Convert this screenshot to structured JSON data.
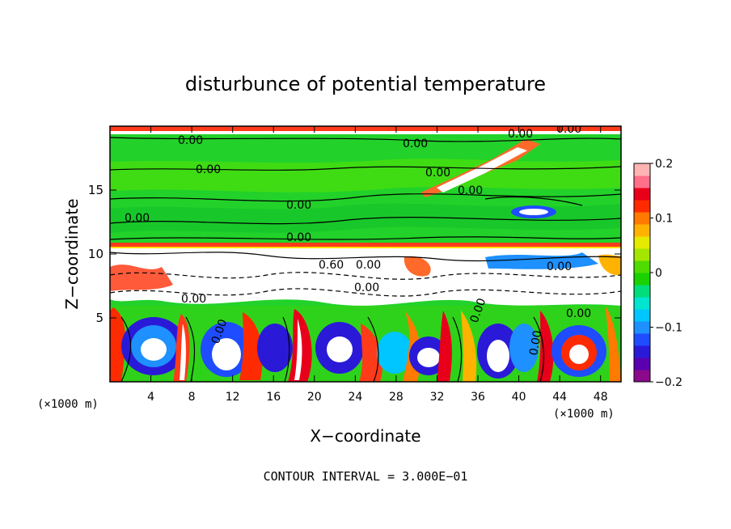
{
  "chart_data": {
    "type": "heatmap",
    "title": "disturbunce of potential temperature",
    "xlabel": "X−coordinate",
    "ylabel": "Z−coordinate",
    "x_unit_left": "(×1000 m)",
    "x_unit_right": "(×1000 m)",
    "xlim": [
      0,
      50
    ],
    "ylim": [
      0,
      20
    ],
    "x_ticks": [
      4,
      8,
      12,
      16,
      20,
      24,
      28,
      32,
      36,
      40,
      44,
      48
    ],
    "y_ticks": [
      5,
      10,
      15
    ],
    "colorbar": {
      "range": [
        -0.2,
        0.2
      ],
      "ticks": [
        0.2,
        0.1,
        0,
        -0.1,
        -0.2
      ],
      "tick_labels": [
        "0.2",
        "0.1",
        "0",
        "−0.1",
        "−0.2"
      ],
      "colors": [
        "#8b0a8b",
        "#5a00b0",
        "#2a1ad8",
        "#1f4cff",
        "#1e90ff",
        "#00c6ff",
        "#00e5d0",
        "#00dd7a",
        "#19d200",
        "#4fdc00",
        "#a4e600",
        "#e6ea00",
        "#ffb300",
        "#ff7a00",
        "#ff2b00",
        "#e8001a",
        "#ff6f8a",
        "#ffb4b4"
      ]
    },
    "contour_labels": [
      "0.00",
      "0.00",
      "0.00",
      "0.00",
      "0.00",
      "0.00",
      "0.00",
      "0.00",
      "0.00",
      "0.00",
      "0.00",
      "0.00",
      "0.60",
      "0.00",
      "0.00",
      "0.00",
      "0.00",
      "0.00",
      "0.00",
      "0.00",
      "0.00",
      "0.00"
    ],
    "annotation": "CONTOUR INTERVAL = 3.000E−01",
    "grid": false
  }
}
